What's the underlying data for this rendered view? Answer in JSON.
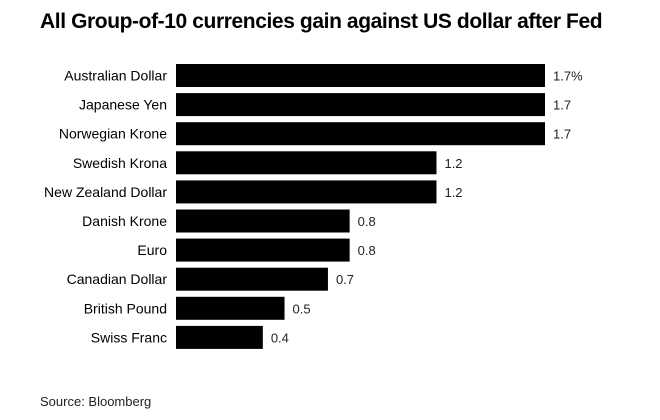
{
  "title": "All Group-of-10 currencies gain against US dollar after Fed",
  "source": "Source: Bloomberg",
  "chart_data": {
    "type": "bar",
    "orientation": "horizontal",
    "categories": [
      "Australian Dollar",
      "Japanese Yen",
      "Norwegian Krone",
      "Swedish Krona",
      "New Zealand Dollar",
      "Danish Krone",
      "Euro",
      "Canadian Dollar",
      "British Pound",
      "Swiss Franc"
    ],
    "values": [
      1.7,
      1.7,
      1.7,
      1.2,
      1.2,
      0.8,
      0.8,
      0.7,
      0.5,
      0.4
    ],
    "value_labels": [
      "1.7%",
      "1.7",
      "1.7",
      "1.2",
      "1.2",
      "0.8",
      "0.8",
      "0.7",
      "0.5",
      "0.4"
    ],
    "xlim": [
      0,
      1.7
    ],
    "bar_color": "#000000",
    "grid": false,
    "legend": "none"
  }
}
